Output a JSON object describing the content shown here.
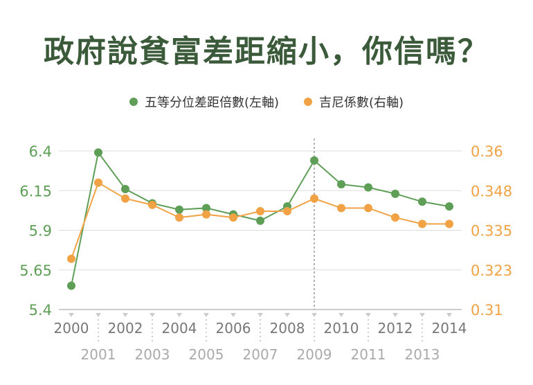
{
  "title": "政府說貧富差距縮小，你信嗎？",
  "colors": {
    "green": "#5e9e57",
    "orange": "#f0a245",
    "grid": "#dddddd",
    "axis": "#bbbbbb",
    "tick_text": "#777777",
    "tick_text_light": "#aaaaaa"
  },
  "chart_data": {
    "type": "line",
    "x": [
      2000,
      2001,
      2002,
      2003,
      2004,
      2005,
      2006,
      2007,
      2008,
      2009,
      2010,
      2011,
      2012,
      2013,
      2014
    ],
    "x_tick_labels_top": [
      "2000",
      "2002",
      "2004",
      "2006",
      "2008",
      "2010",
      "2012",
      "2014"
    ],
    "x_tick_labels_bottom": [
      "2001",
      "2003",
      "2005",
      "2007",
      "2009",
      "2011",
      "2013"
    ],
    "series": [
      {
        "name": "五等分位差距倍數(左軸)",
        "axis": "left",
        "color": "#5e9e57",
        "values": [
          5.55,
          6.39,
          6.16,
          6.07,
          6.03,
          6.04,
          6.0,
          5.96,
          6.05,
          6.34,
          6.19,
          6.17,
          6.13,
          6.08,
          6.05
        ]
      },
      {
        "name": "吉尼係數(右軸)",
        "axis": "right",
        "color": "#f0a245",
        "values": [
          0.326,
          0.35,
          0.345,
          0.343,
          0.339,
          0.34,
          0.339,
          0.341,
          0.341,
          0.345,
          0.342,
          0.342,
          0.339,
          0.337,
          0.337
        ]
      }
    ],
    "y_left": {
      "ticks": [
        "5.4",
        "5.65",
        "5.9",
        "6.15",
        "6.4"
      ],
      "ylim": [
        5.4,
        6.4
      ]
    },
    "y_right": {
      "ticks": [
        "0.31",
        "0.323",
        "0.335",
        "0.348",
        "0.36"
      ],
      "ylim": [
        0.31,
        0.36
      ]
    },
    "annotations": [
      {
        "type": "vertical-dashed-line",
        "x": 2009
      }
    ],
    "grid": true,
    "legend": "top-center"
  }
}
